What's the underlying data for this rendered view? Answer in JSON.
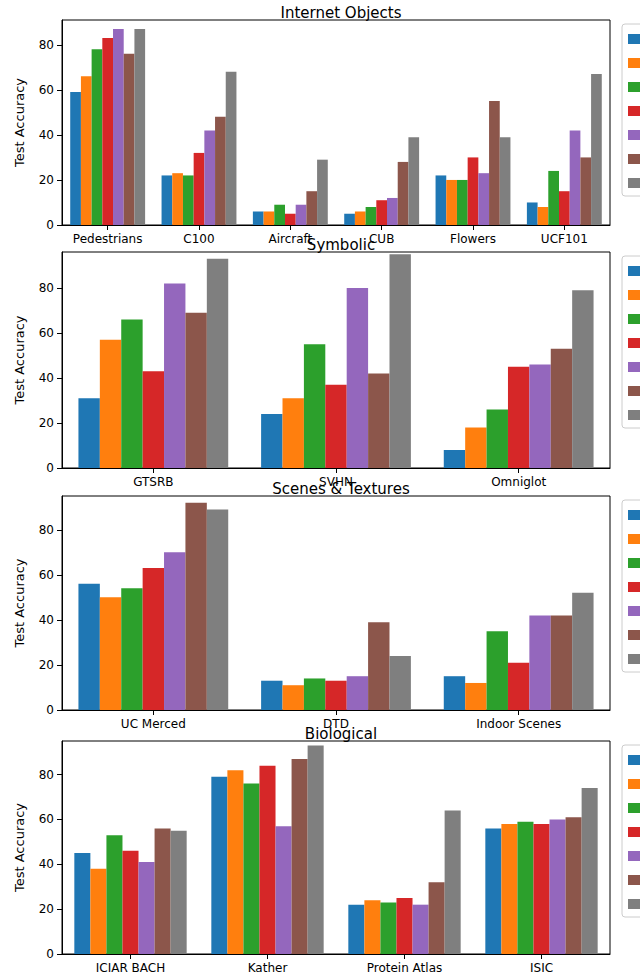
{
  "chart_data": [
    {
      "type": "bar",
      "title": "Internet Objects",
      "ylabel": "Test Accuracy",
      "categories": [
        "Pedestrians",
        "C100",
        "Aircraft",
        "CUB",
        "Flowers",
        "UCF101"
      ],
      "ylim": [
        0,
        91
      ],
      "yticks": [
        0,
        20,
        40,
        60,
        80
      ],
      "grid": false,
      "series": [
        {
          "color": "#1f77b4",
          "values": [
            59,
            22,
            6,
            5,
            22,
            10
          ]
        },
        {
          "color": "#ff7f0e",
          "values": [
            66,
            23,
            6,
            6,
            20,
            8
          ]
        },
        {
          "color": "#2ca02c",
          "values": [
            78,
            22,
            9,
            8,
            20,
            24
          ]
        },
        {
          "color": "#d62728",
          "values": [
            83,
            32,
            5,
            11,
            30,
            15
          ]
        },
        {
          "color": "#9467bd",
          "values": [
            87,
            42,
            9,
            12,
            23,
            42
          ]
        },
        {
          "color": "#8c564b",
          "values": [
            76,
            48,
            15,
            28,
            55,
            30
          ]
        },
        {
          "color": "#7f7f7f",
          "values": [
            87,
            68,
            29,
            39,
            39,
            67
          ]
        }
      ]
    },
    {
      "type": "bar",
      "title": "Symbolic",
      "ylabel": "Test Accuracy",
      "categories": [
        "GTSRB",
        "SVHN",
        "Omniglot"
      ],
      "ylim": [
        0,
        96
      ],
      "yticks": [
        0,
        20,
        40,
        60,
        80
      ],
      "grid": false,
      "series": [
        {
          "color": "#1f77b4",
          "values": [
            31,
            24,
            8
          ]
        },
        {
          "color": "#ff7f0e",
          "values": [
            57,
            31,
            18
          ]
        },
        {
          "color": "#2ca02c",
          "values": [
            66,
            55,
            26
          ]
        },
        {
          "color": "#d62728",
          "values": [
            43,
            37,
            45
          ]
        },
        {
          "color": "#9467bd",
          "values": [
            82,
            80,
            46
          ]
        },
        {
          "color": "#8c564b",
          "values": [
            69,
            42,
            53
          ]
        },
        {
          "color": "#7f7f7f",
          "values": [
            93,
            95,
            79
          ]
        }
      ]
    },
    {
      "type": "bar",
      "title": "Scenes & Textures",
      "ylabel": "Test Accuracy",
      "categories": [
        "UC Merced",
        "DTD",
        "Indoor Scenes"
      ],
      "ylim": [
        0,
        95
      ],
      "yticks": [
        0,
        20,
        40,
        60,
        80
      ],
      "grid": false,
      "series": [
        {
          "color": "#1f77b4",
          "values": [
            56,
            13,
            15
          ]
        },
        {
          "color": "#ff7f0e",
          "values": [
            50,
            11,
            12
          ]
        },
        {
          "color": "#2ca02c",
          "values": [
            54,
            14,
            35
          ]
        },
        {
          "color": "#d62728",
          "values": [
            63,
            13,
            21
          ]
        },
        {
          "color": "#9467bd",
          "values": [
            70,
            15,
            42
          ]
        },
        {
          "color": "#8c564b",
          "values": [
            92,
            39,
            42
          ]
        },
        {
          "color": "#7f7f7f",
          "values": [
            89,
            24,
            52
          ]
        }
      ]
    },
    {
      "type": "bar",
      "title": "Biological",
      "ylabel": "Test Accuracy",
      "categories": [
        "ICIAR BACH",
        "Kather",
        "Protein Atlas",
        "ISIC"
      ],
      "ylim": [
        0,
        95
      ],
      "yticks": [
        0,
        20,
        40,
        60,
        80
      ],
      "grid": false,
      "series": [
        {
          "color": "#1f77b4",
          "values": [
            45,
            79,
            22,
            56
          ]
        },
        {
          "color": "#ff7f0e",
          "values": [
            38,
            82,
            24,
            58
          ]
        },
        {
          "color": "#2ca02c",
          "values": [
            53,
            76,
            23,
            59
          ]
        },
        {
          "color": "#d62728",
          "values": [
            46,
            84,
            25,
            58
          ]
        },
        {
          "color": "#9467bd",
          "values": [
            41,
            57,
            22,
            60
          ]
        },
        {
          "color": "#8c564b",
          "values": [
            56,
            87,
            32,
            61
          ]
        },
        {
          "color": "#7f7f7f",
          "values": [
            55,
            93,
            64,
            74
          ]
        }
      ]
    }
  ]
}
